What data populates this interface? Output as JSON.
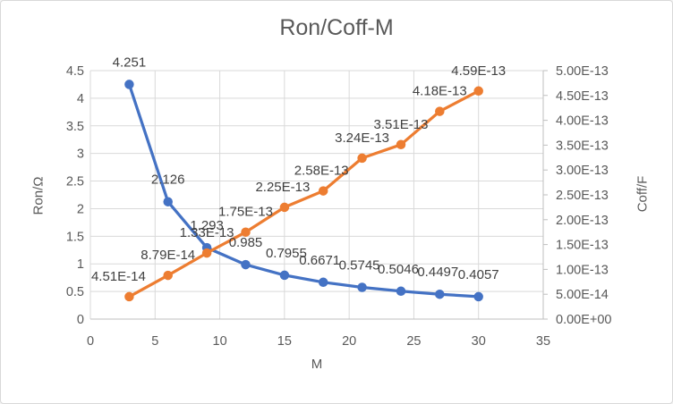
{
  "window": {
    "background": "#ffffff",
    "border_color": "#d9d9d9"
  },
  "chart_data": {
    "type": "line",
    "title": "Ron/Coff-M",
    "xlabel": "M",
    "x": [
      3,
      6,
      9,
      12,
      15,
      18,
      21,
      24,
      27,
      30
    ],
    "xlim": [
      0,
      35
    ],
    "x_tick_values": [
      0,
      5,
      10,
      15,
      20,
      25,
      30,
      35
    ],
    "x_tick_labels": [
      "0",
      "5",
      "10",
      "15",
      "20",
      "25",
      "30",
      "35"
    ],
    "grid": true,
    "legend": "none",
    "left_axis": {
      "label": "Ron/Ω",
      "min": 0,
      "max": 4.5,
      "tick_values": [
        0,
        0.5,
        1,
        1.5,
        2,
        2.5,
        3,
        3.5,
        4,
        4.5
      ],
      "tick_labels": [
        "0",
        "0.5",
        "1",
        "1.5",
        "2",
        "2.5",
        "3",
        "3.5",
        "4",
        "4.5"
      ]
    },
    "right_axis": {
      "label": "Coff/F",
      "min": 0,
      "max": 5e-13,
      "tick_values": [
        0,
        5e-14,
        1e-13,
        1.5e-13,
        2e-13,
        2.5e-13,
        3e-13,
        3.5e-13,
        4e-13,
        4.5e-13,
        5e-13
      ],
      "tick_labels": [
        "0.00E+00",
        "5.00E-14",
        "1.00E-13",
        "1.50E-13",
        "2.00E-13",
        "2.50E-13",
        "3.00E-13",
        "3.50E-13",
        "4.00E-13",
        "4.50E-13",
        "5.00E-13"
      ]
    },
    "series": [
      {
        "name": "Ron",
        "axis": "left",
        "color": "#4472C4",
        "values": [
          4.251,
          2.126,
          1.293,
          0.985,
          0.7955,
          0.6671,
          0.5745,
          0.5046,
          0.4497,
          0.4057
        ],
        "labels": [
          "4.251",
          "2.126",
          "1.293",
          "0.985",
          "0.7955",
          "0.6671",
          "0.5745",
          "0.5046",
          "0.4497",
          "0.4057"
        ],
        "label_dx": [
          0,
          0,
          0,
          0,
          2,
          -4,
          -3,
          -3,
          -2,
          0
        ],
        "label_dy": -20
      },
      {
        "name": "Coff",
        "axis": "right",
        "color": "#ED7D31",
        "values": [
          4.51e-14,
          8.79e-14,
          1.33e-13,
          1.75e-13,
          2.25e-13,
          2.58e-13,
          3.24e-13,
          3.51e-13,
          4.18e-13,
          4.59e-13
        ],
        "labels": [
          "4.51E-14",
          "8.79E-14",
          "1.33E-13",
          "1.75E-13",
          "2.25E-13",
          "2.58E-13",
          "3.24E-13",
          "3.51E-13",
          "4.18E-13",
          "4.59E-13"
        ],
        "label_dx": [
          -12,
          0,
          0,
          0,
          -2,
          -2,
          0,
          0,
          0,
          0
        ],
        "label_dy": -18
      }
    ],
    "colors": {
      "gridline": "#D9D9D9",
      "axis_line": "#BFBFBF",
      "tick_text": "#595959",
      "title_text": "#595959",
      "data_label_text": "#404040"
    }
  }
}
